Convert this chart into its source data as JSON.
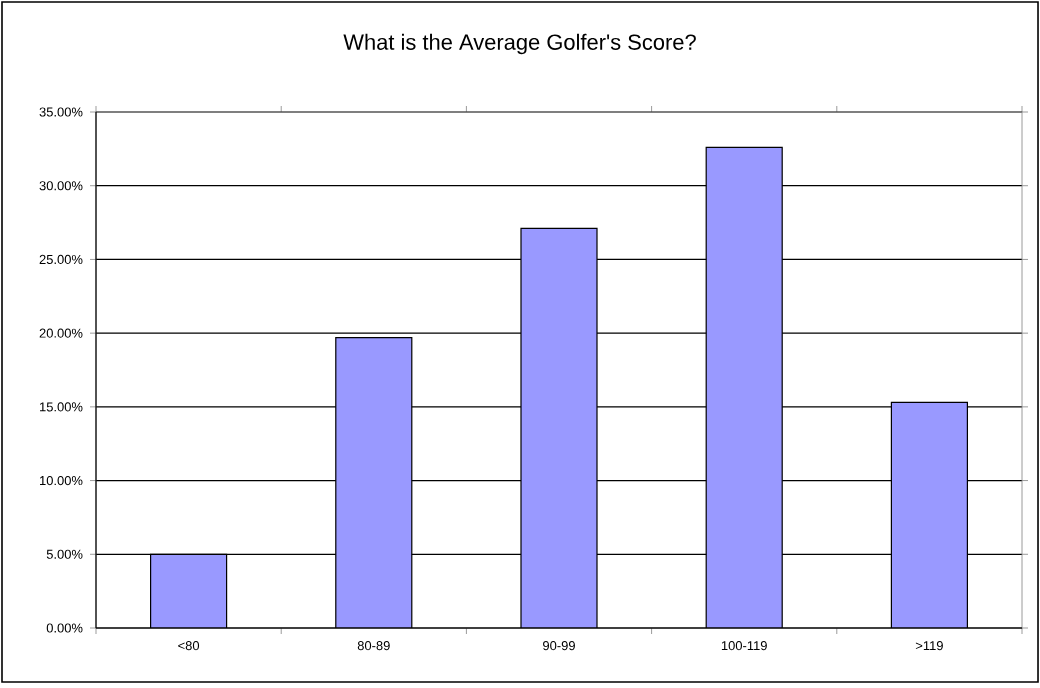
{
  "chart_data": {
    "type": "bar",
    "title": "What is the Average Golfer's Score?",
    "categories": [
      "<80",
      "80-89",
      "90-99",
      "100-119",
      ">119"
    ],
    "values": [
      5.0,
      19.7,
      27.1,
      32.6,
      15.3
    ],
    "color": "#9999ff",
    "ylim": [
      0,
      35
    ],
    "yticks": [
      {
        "value": 0,
        "label": "0.00%"
      },
      {
        "value": 5,
        "label": "5.00%"
      },
      {
        "value": 10,
        "label": "10.00%"
      },
      {
        "value": 15,
        "label": "15.00%"
      },
      {
        "value": 20,
        "label": "20.00%"
      },
      {
        "value": 25,
        "label": "25.00%"
      },
      {
        "value": 30,
        "label": "30.00%"
      },
      {
        "value": 35,
        "label": "35.00%"
      }
    ],
    "grid": "y"
  }
}
